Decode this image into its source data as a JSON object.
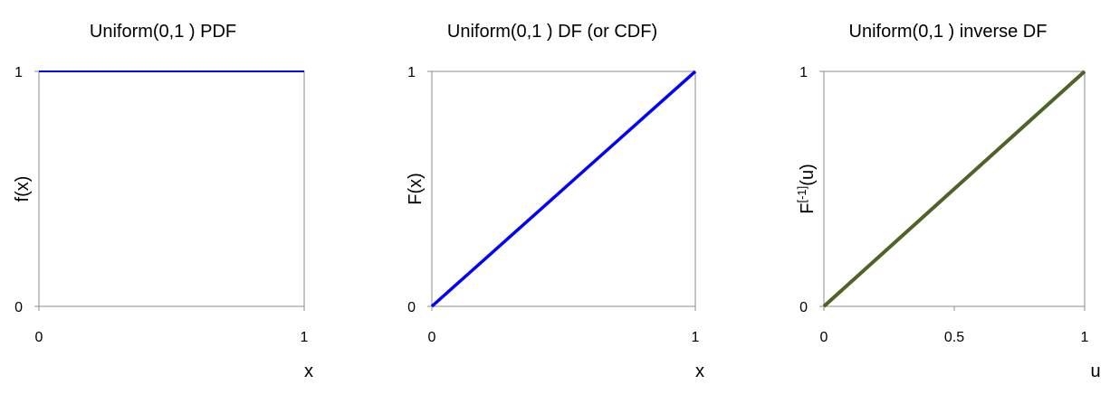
{
  "chart_data": [
    {
      "type": "line",
      "title": "Uniform(0,1 ) PDF",
      "xlabel": "x",
      "ylabel": "f(x)",
      "xlim": [
        0,
        1
      ],
      "ylim": [
        0,
        1
      ],
      "xticks": [
        "0",
        "1"
      ],
      "yticks": [
        "0",
        "1"
      ],
      "grid": false,
      "series": [
        {
          "color": "#0000ff",
          "x": [
            0,
            1
          ],
          "y": [
            1,
            1
          ]
        }
      ]
    },
    {
      "type": "line",
      "title": "Uniform(0,1 ) DF (or CDF)",
      "xlabel": "x",
      "ylabel": "F(x)",
      "xlim": [
        0,
        1
      ],
      "ylim": [
        0,
        1
      ],
      "xticks": [
        "0",
        "1"
      ],
      "yticks": [
        "0",
        "1"
      ],
      "grid": false,
      "series": [
        {
          "color": "#0000ff",
          "x": [
            0,
            1
          ],
          "y": [
            0,
            1
          ]
        }
      ]
    },
    {
      "type": "line",
      "title": "Uniform(0,1 ) inverse DF",
      "xlabel": "u",
      "ylabel_base": "F",
      "ylabel_sup": "[-1]",
      "ylabel_rest": "(u)",
      "xlim": [
        0,
        1
      ],
      "ylim": [
        0,
        1
      ],
      "xticks": [
        "0",
        "0.5",
        "1"
      ],
      "yticks": [
        "0",
        "1"
      ],
      "grid": false,
      "series": [
        {
          "color": "#4f6228",
          "x": [
            0,
            1
          ],
          "y": [
            0,
            1
          ]
        }
      ]
    }
  ]
}
